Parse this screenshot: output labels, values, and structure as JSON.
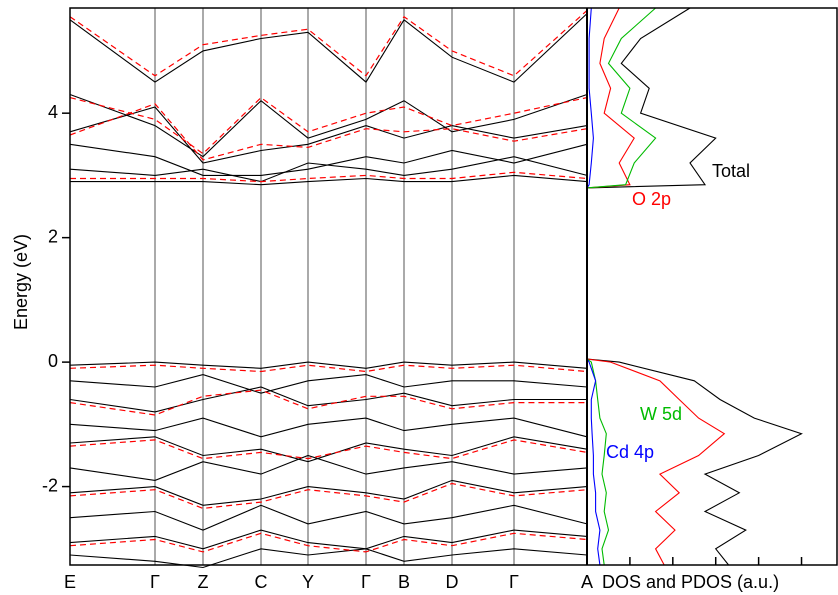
{
  "chart_data": [
    {
      "type": "line",
      "ylabel": "Energy (eV)",
      "x": [
        0,
        0.85,
        1.33,
        1.91,
        2.38,
        2.96,
        3.34,
        3.82,
        4.44,
        5.17
      ],
      "xlim": [
        0,
        5.17
      ],
      "xticks": [
        {
          "value": 0,
          "label": "E"
        },
        {
          "value": 0.85,
          "label": "Γ"
        },
        {
          "value": 1.33,
          "label": "Z"
        },
        {
          "value": 1.91,
          "label": "C"
        },
        {
          "value": 2.38,
          "label": "Y"
        },
        {
          "value": 2.96,
          "label": "Γ"
        },
        {
          "value": 3.34,
          "label": "B"
        },
        {
          "value": 3.82,
          "label": "D"
        },
        {
          "value": 4.44,
          "label": "Γ"
        },
        {
          "value": 5.17,
          "label": "A"
        }
      ],
      "ylim": [
        -3.26,
        5.69
      ],
      "yticks": [
        -2,
        0,
        2,
        4
      ],
      "grid": true,
      "series": [
        {
          "color": "#000000",
          "dashed": false,
          "values": [
            5.5,
            4.5,
            5.0,
            5.2,
            5.3,
            4.5,
            5.5,
            4.9,
            4.5,
            5.6
          ]
        },
        {
          "color": "#000000",
          "dashed": false,
          "values": [
            4.3,
            3.8,
            3.3,
            4.2,
            3.6,
            3.9,
            4.2,
            3.7,
            3.9,
            4.3
          ]
        },
        {
          "color": "#000000",
          "dashed": false,
          "values": [
            3.7,
            4.1,
            3.2,
            3.4,
            3.5,
            3.8,
            3.6,
            3.8,
            3.6,
            3.8
          ]
        },
        {
          "color": "#000000",
          "dashed": false,
          "values": [
            3.5,
            3.3,
            3.0,
            3.0,
            3.1,
            3.3,
            3.2,
            3.4,
            3.2,
            3.5
          ]
        },
        {
          "color": "#000000",
          "dashed": false,
          "values": [
            2.9,
            2.9,
            2.9,
            2.85,
            2.9,
            2.95,
            2.9,
            2.9,
            3.0,
            2.9
          ]
        },
        {
          "color": "#000000",
          "dashed": false,
          "values": [
            3.1,
            3.0,
            3.1,
            2.9,
            3.2,
            3.1,
            3.0,
            3.1,
            3.3,
            3.0
          ]
        },
        {
          "color": "#000000",
          "dashed": false,
          "values": [
            -0.05,
            0,
            -0.05,
            -0.1,
            0,
            -0.1,
            0,
            -0.05,
            0,
            -0.1
          ]
        },
        {
          "color": "#000000",
          "dashed": false,
          "values": [
            -0.3,
            -0.4,
            -0.2,
            -0.5,
            -0.3,
            -0.2,
            -0.4,
            -0.3,
            -0.3,
            -0.4
          ]
        },
        {
          "color": "#000000",
          "dashed": false,
          "values": [
            -0.6,
            -0.8,
            -0.6,
            -0.4,
            -0.7,
            -0.6,
            -0.5,
            -0.7,
            -0.6,
            -0.6
          ]
        },
        {
          "color": "#000000",
          "dashed": false,
          "values": [
            -1.0,
            -1.1,
            -0.9,
            -1.2,
            -1.0,
            -0.9,
            -1.1,
            -1.0,
            -0.9,
            -1.2
          ]
        },
        {
          "color": "#000000",
          "dashed": false,
          "values": [
            -1.3,
            -1.2,
            -1.5,
            -1.4,
            -1.6,
            -1.3,
            -1.4,
            -1.5,
            -1.2,
            -1.4
          ]
        },
        {
          "color": "#000000",
          "dashed": false,
          "values": [
            -1.7,
            -1.9,
            -1.6,
            -1.8,
            -1.5,
            -1.8,
            -1.7,
            -1.6,
            -1.8,
            -1.7
          ]
        },
        {
          "color": "#000000",
          "dashed": false,
          "values": [
            -2.1,
            -2.0,
            -2.3,
            -2.2,
            -2.0,
            -2.1,
            -2.2,
            -1.9,
            -2.1,
            -2.0
          ]
        },
        {
          "color": "#000000",
          "dashed": false,
          "values": [
            -2.5,
            -2.4,
            -2.7,
            -2.3,
            -2.6,
            -2.4,
            -2.6,
            -2.5,
            -2.3,
            -2.6
          ]
        },
        {
          "color": "#000000",
          "dashed": false,
          "values": [
            -2.9,
            -2.8,
            -3.0,
            -2.7,
            -2.9,
            -3.0,
            -2.8,
            -2.9,
            -2.7,
            -2.8
          ]
        },
        {
          "color": "#000000",
          "dashed": false,
          "values": [
            -3.1,
            -3.2,
            -3.3,
            -3.0,
            -3.1,
            -3.0,
            -3.2,
            -3.1,
            -3.0,
            -3.1
          ]
        },
        {
          "color": "#ff0000",
          "dashed": true,
          "values": [
            5.55,
            4.6,
            5.1,
            5.25,
            5.35,
            4.6,
            5.55,
            5.0,
            4.6,
            5.65
          ]
        },
        {
          "color": "#ff0000",
          "dashed": true,
          "values": [
            4.25,
            3.9,
            3.35,
            4.25,
            3.7,
            4.0,
            4.1,
            3.8,
            4.0,
            4.25
          ]
        },
        {
          "color": "#ff0000",
          "dashed": true,
          "values": [
            3.65,
            4.15,
            3.25,
            3.5,
            3.45,
            3.75,
            3.7,
            3.75,
            3.55,
            3.75
          ]
        },
        {
          "color": "#ff0000",
          "dashed": true,
          "values": [
            2.95,
            2.95,
            2.95,
            2.9,
            2.95,
            3.0,
            2.95,
            2.95,
            3.05,
            2.95
          ]
        },
        {
          "color": "#ff0000",
          "dashed": true,
          "values": [
            -0.1,
            -0.05,
            -0.1,
            -0.15,
            -0.05,
            -0.15,
            -0.05,
            -0.1,
            -0.05,
            -0.15
          ]
        },
        {
          "color": "#ff0000",
          "dashed": true,
          "values": [
            -0.65,
            -0.85,
            -0.55,
            -0.45,
            -0.75,
            -0.55,
            -0.55,
            -0.75,
            -0.65,
            -0.65
          ]
        },
        {
          "color": "#ff0000",
          "dashed": true,
          "values": [
            -1.35,
            -1.25,
            -1.55,
            -1.45,
            -1.55,
            -1.35,
            -1.45,
            -1.55,
            -1.25,
            -1.45
          ]
        },
        {
          "color": "#ff0000",
          "dashed": true,
          "values": [
            -2.15,
            -2.05,
            -2.35,
            -2.25,
            -2.05,
            -2.15,
            -2.25,
            -1.95,
            -2.15,
            -2.05
          ]
        },
        {
          "color": "#ff0000",
          "dashed": true,
          "values": [
            -2.95,
            -2.85,
            -3.05,
            -2.75,
            -2.95,
            -3.05,
            -2.85,
            -2.95,
            -2.75,
            -2.85
          ]
        }
      ]
    },
    {
      "type": "dos",
      "xlabel": "DOS and PDOS (a.u.)",
      "y": [
        -3.26,
        -3.0,
        -2.7,
        -2.4,
        -2.1,
        -1.8,
        -1.5,
        -1.15,
        -0.9,
        -0.6,
        -0.3,
        0,
        0.05,
        2.8,
        2.85,
        3.2,
        3.6,
        4.0,
        4.4,
        4.8,
        5.2,
        5.69
      ],
      "ylim": [
        -3.26,
        5.69
      ],
      "xlim": [
        0,
        5.85
      ],
      "xticks": [
        1,
        2,
        3,
        4,
        5
      ],
      "series": [
        {
          "name": "Total",
          "color": "#000000",
          "values": [
            3.3,
            3.0,
            3.7,
            2.75,
            3.55,
            2.75,
            4.0,
            5.0,
            3.9,
            3.1,
            2.5,
            0.75,
            0,
            0,
            2.75,
            2.4,
            3.0,
            1.25,
            1.45,
            0.8,
            1.25,
            2.4
          ]
        },
        {
          "name": "O 2p",
          "color": "#ff0000",
          "values": [
            1.8,
            1.6,
            2.05,
            1.6,
            2.15,
            1.7,
            2.6,
            3.2,
            2.6,
            2.15,
            1.7,
            0.55,
            0,
            0,
            1.0,
            0.75,
            1.1,
            0.4,
            0.55,
            0.3,
            0.4,
            0.75
          ]
        },
        {
          "name": "W 5d",
          "color": "#00bb00",
          "values": [
            0.4,
            0.35,
            0.5,
            0.4,
            0.45,
            0.35,
            0.4,
            0.45,
            0.3,
            0.25,
            0.2,
            0.1,
            0,
            0,
            0.9,
            1.1,
            1.6,
            0.8,
            1.0,
            0.5,
            0.8,
            1.6
          ]
        },
        {
          "name": "Cd 4p",
          "color": "#0000ff",
          "values": [
            0.3,
            0.25,
            0.3,
            0.2,
            0.2,
            0.15,
            0.15,
            0.12,
            0.1,
            0.1,
            0.2,
            0.05,
            0,
            0,
            0.05,
            0.1,
            0.15,
            0.1,
            0.05,
            0.05,
            0.05,
            0.1
          ]
        }
      ]
    }
  ]
}
